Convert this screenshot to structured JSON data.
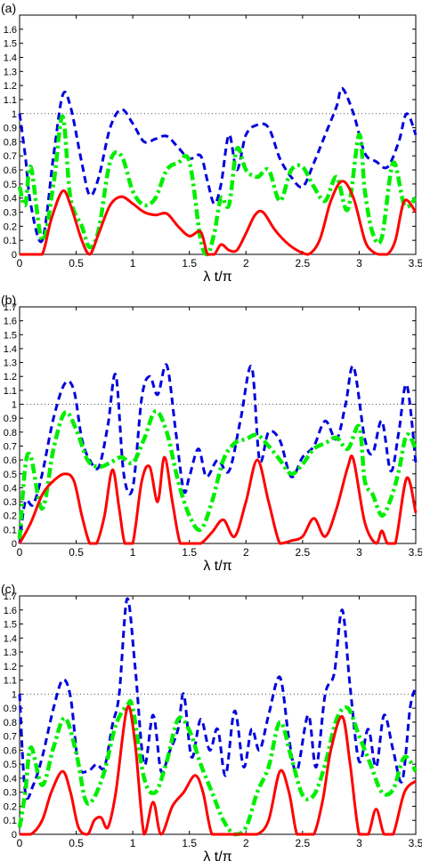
{
  "chart_data": [
    {
      "type": "line",
      "panel_label": "(a)",
      "xlabel": "λ t/π",
      "xlim": [
        0,
        3.5
      ],
      "ylim": [
        0,
        1.7
      ],
      "x_ticks": [
        0,
        0.5,
        1,
        1.5,
        2,
        2.5,
        3,
        3.5
      ],
      "x_tick_labels": [
        "0",
        "0.5",
        "1",
        "1.5",
        "2",
        "2.5",
        "3",
        "3.5"
      ],
      "y_ticks": [
        0,
        0.1,
        0.2,
        0.3,
        0.4,
        0.5,
        0.6,
        0.7,
        0.8,
        0.9,
        1,
        1.1,
        1.2,
        1.3,
        1.4,
        1.5,
        1.6,
        1.7
      ],
      "y_tick_labels": [
        "0",
        "0.1",
        "0.2",
        "0.3",
        "0.4",
        "0.5",
        "0.6",
        "0.7",
        "0.8",
        "0.9",
        "1",
        "1.1",
        "1.2",
        "1.3",
        "1.4",
        "1.5",
        "1.6",
        "1.7"
      ],
      "reference_line": 1,
      "series": [
        {
          "color": "#ff0000",
          "style": "solid",
          "x": [
            0,
            0.1,
            0.2,
            0.28,
            0.38,
            0.45,
            0.55,
            0.62,
            0.7,
            0.8,
            0.9,
            1.0,
            1.1,
            1.2,
            1.3,
            1.4,
            1.5,
            1.6,
            1.66,
            1.72,
            1.78,
            1.85,
            1.92,
            2.0,
            2.08,
            2.15,
            2.25,
            2.35,
            2.45,
            2.55,
            2.65,
            2.75,
            2.85,
            2.95,
            3.05,
            3.12,
            3.18,
            3.25,
            3.32,
            3.4,
            3.5
          ],
          "y": [
            0,
            0,
            0,
            0.25,
            0.45,
            0.35,
            0.1,
            0,
            0.15,
            0.35,
            0.41,
            0.36,
            0.3,
            0.28,
            0.29,
            0.2,
            0.13,
            0.16,
            0,
            0,
            0.07,
            0.03,
            0.03,
            0.15,
            0.28,
            0.3,
            0.18,
            0.09,
            0.03,
            0,
            0.1,
            0.38,
            0.52,
            0.4,
            0.1,
            0.02,
            0,
            0,
            0.1,
            0.38,
            0.3
          ]
        },
        {
          "color": "#0000dd",
          "style": "dashed",
          "x": [
            0,
            0.05,
            0.1,
            0.2,
            0.3,
            0.38,
            0.45,
            0.55,
            0.62,
            0.7,
            0.8,
            0.9,
            1.0,
            1.1,
            1.2,
            1.3,
            1.4,
            1.5,
            1.6,
            1.66,
            1.72,
            1.78,
            1.85,
            1.92,
            2.0,
            2.1,
            2.2,
            2.3,
            2.4,
            2.5,
            2.6,
            2.7,
            2.8,
            2.85,
            2.95,
            3.05,
            3.15,
            3.25,
            3.35,
            3.42,
            3.5
          ],
          "y": [
            1.0,
            0.7,
            0.35,
            0.1,
            0.7,
            1.13,
            1.05,
            0.65,
            0.42,
            0.55,
            0.9,
            1.03,
            0.93,
            0.8,
            0.82,
            0.84,
            0.76,
            0.68,
            0.7,
            0.52,
            0.36,
            0.5,
            0.85,
            0.6,
            0.85,
            0.92,
            0.9,
            0.68,
            0.55,
            0.48,
            0.65,
            0.85,
            1.05,
            1.18,
            1.0,
            0.72,
            0.66,
            0.62,
            0.8,
            1.0,
            0.85
          ]
        },
        {
          "color": "#00ee00",
          "style": "dashdot",
          "x": [
            0,
            0.05,
            0.1,
            0.2,
            0.3,
            0.38,
            0.45,
            0.55,
            0.62,
            0.7,
            0.8,
            0.9,
            1.0,
            1.1,
            1.2,
            1.3,
            1.4,
            1.5,
            1.6,
            1.66,
            1.72,
            1.78,
            1.85,
            1.92,
            2.0,
            2.1,
            2.2,
            2.3,
            2.4,
            2.5,
            2.6,
            2.7,
            2.8,
            2.9,
            3.0,
            3.05,
            3.12,
            3.2,
            3.3,
            3.4,
            3.5
          ],
          "y": [
            0.48,
            0.35,
            0.62,
            0.1,
            0.5,
            0.98,
            0.4,
            0.2,
            0.05,
            0.18,
            0.66,
            0.7,
            0.45,
            0.35,
            0.4,
            0.6,
            0.65,
            0.66,
            0.1,
            0.0,
            0.15,
            0.4,
            0.35,
            0.75,
            0.6,
            0.55,
            0.6,
            0.38,
            0.6,
            0.62,
            0.48,
            0.38,
            0.55,
            0.32,
            0.85,
            0.45,
            0.15,
            0.12,
            0.65,
            0.35,
            0.4
          ]
        }
      ]
    },
    {
      "type": "line",
      "panel_label": "(b)",
      "xlabel": "λ t/π",
      "xlim": [
        0,
        3.5
      ],
      "ylim": [
        0,
        1.7
      ],
      "x_ticks": [
        0,
        0.5,
        1,
        1.5,
        2,
        2.5,
        3,
        3.5
      ],
      "x_tick_labels": [
        "0",
        "0.5",
        "1",
        "1.5",
        "2",
        "2.5",
        "3",
        "3.5"
      ],
      "y_ticks": [
        0,
        0.1,
        0.2,
        0.3,
        0.4,
        0.5,
        0.6,
        0.7,
        0.8,
        0.9,
        1,
        1.1,
        1.2,
        1.3,
        1.4,
        1.5,
        1.6,
        1.7
      ],
      "y_tick_labels": [
        "0",
        "0.1",
        "0.2",
        "0.3",
        "0.4",
        "0.5",
        "0.6",
        "0.7",
        "0.8",
        "0.9",
        "1",
        "1.1",
        "1.2",
        "1.3",
        "1.4",
        "1.5",
        "1.6",
        "1.7"
      ],
      "reference_line": 1,
      "series": [
        {
          "color": "#ff0000",
          "style": "solid",
          "x": [
            0,
            0.1,
            0.2,
            0.3,
            0.4,
            0.48,
            0.55,
            0.62,
            0.68,
            0.75,
            0.82,
            0.88,
            0.93,
            1.0,
            1.08,
            1.15,
            1.22,
            1.28,
            1.35,
            1.42,
            1.5,
            1.6,
            1.7,
            1.8,
            1.9,
            2.0,
            2.1,
            2.2,
            2.3,
            2.4,
            2.5,
            2.6,
            2.7,
            2.8,
            2.9,
            2.95,
            3.05,
            3.15,
            3.2,
            3.25,
            3.32,
            3.42,
            3.5
          ],
          "y": [
            0,
            0.15,
            0.35,
            0.45,
            0.5,
            0.45,
            0.2,
            0,
            0,
            0.2,
            0.53,
            0.25,
            0,
            0,
            0.45,
            0.55,
            0.3,
            0.62,
            0.3,
            0,
            0,
            0,
            0.08,
            0.17,
            0.05,
            0.3,
            0.6,
            0.3,
            0,
            0.02,
            0.05,
            0.18,
            0.05,
            0.25,
            0.55,
            0.6,
            0.15,
            0,
            0.09,
            0,
            0,
            0.47,
            0.22
          ]
        },
        {
          "color": "#0000dd",
          "style": "dashed",
          "x": [
            0,
            0.05,
            0.12,
            0.2,
            0.3,
            0.4,
            0.48,
            0.55,
            0.62,
            0.7,
            0.78,
            0.85,
            0.92,
            1.0,
            1.08,
            1.15,
            1.22,
            1.3,
            1.38,
            1.45,
            1.5,
            1.58,
            1.65,
            1.75,
            1.85,
            1.95,
            2.05,
            2.12,
            2.2,
            2.3,
            2.4,
            2.5,
            2.6,
            2.7,
            2.8,
            2.88,
            2.95,
            3.05,
            3.12,
            3.2,
            3.28,
            3.35,
            3.42,
            3.5
          ],
          "y": [
            0,
            0.3,
            0.28,
            0.5,
            0.9,
            1.15,
            1.1,
            0.75,
            0.6,
            0.55,
            0.85,
            1.21,
            0.5,
            0.4,
            1.05,
            1.2,
            1.07,
            1.28,
            0.8,
            0.38,
            0.48,
            0.68,
            0.48,
            0.6,
            0.52,
            0.88,
            1.27,
            0.6,
            0.8,
            0.74,
            0.48,
            0.62,
            0.7,
            0.88,
            0.75,
            1.0,
            1.27,
            0.75,
            0.65,
            0.88,
            0.52,
            0.8,
            1.14,
            0.58
          ]
        },
        {
          "color": "#00ee00",
          "style": "dashdot",
          "x": [
            0,
            0.05,
            0.1,
            0.2,
            0.3,
            0.4,
            0.5,
            0.6,
            0.7,
            0.8,
            0.9,
            1.0,
            1.1,
            1.2,
            1.3,
            1.4,
            1.5,
            1.6,
            1.7,
            1.8,
            1.9,
            2.0,
            2.1,
            2.2,
            2.3,
            2.4,
            2.5,
            2.6,
            2.7,
            2.8,
            2.9,
            3.0,
            3.05,
            3.12,
            3.2,
            3.28,
            3.35,
            3.42,
            3.5
          ],
          "y": [
            0.03,
            0.55,
            0.62,
            0.25,
            0.68,
            0.94,
            0.82,
            0.6,
            0.55,
            0.58,
            0.62,
            0.58,
            0.75,
            0.95,
            0.8,
            0.45,
            0.2,
            0.1,
            0.3,
            0.6,
            0.72,
            0.75,
            0.78,
            0.7,
            0.6,
            0.5,
            0.57,
            0.68,
            0.72,
            0.76,
            0.68,
            0.84,
            0.45,
            0.35,
            0.2,
            0.32,
            0.52,
            0.78,
            0.68
          ]
        }
      ]
    },
    {
      "type": "line",
      "panel_label": "(c)",
      "xlabel": "λ t/π",
      "xlim": [
        0,
        3.5
      ],
      "ylim": [
        0,
        1.7
      ],
      "x_ticks": [
        0,
        0.5,
        1,
        1.5,
        2,
        2.5,
        3,
        3.5
      ],
      "x_tick_labels": [
        "0",
        "0.5",
        "1",
        "1.5",
        "2",
        "2.5",
        "3",
        "3.5"
      ],
      "y_ticks": [
        0,
        0.1,
        0.2,
        0.3,
        0.4,
        0.5,
        0.6,
        0.7,
        0.8,
        0.9,
        1,
        1.1,
        1.2,
        1.3,
        1.4,
        1.5,
        1.6,
        1.7
      ],
      "y_tick_labels": [
        "0",
        "0.1",
        "0.2",
        "0.3",
        "0.4",
        "0.5",
        "0.6",
        "0.7",
        "0.8",
        "0.9",
        "1",
        "1.1",
        "1.2",
        "1.3",
        "1.4",
        "1.5",
        "1.6",
        "1.7"
      ],
      "reference_line": 1,
      "series": [
        {
          "color": "#ff0000",
          "style": "solid",
          "x": [
            0,
            0.1,
            0.2,
            0.28,
            0.38,
            0.45,
            0.52,
            0.6,
            0.66,
            0.72,
            0.78,
            0.85,
            0.95,
            1.02,
            1.1,
            1.18,
            1.25,
            1.35,
            1.45,
            1.55,
            1.62,
            1.7,
            1.8,
            1.9,
            2.0,
            2.1,
            2.2,
            2.3,
            2.38,
            2.45,
            2.52,
            2.6,
            2.68,
            2.75,
            2.85,
            2.92,
            3.0,
            3.08,
            3.15,
            3.22,
            3.3,
            3.4,
            3.5
          ],
          "y": [
            0,
            0,
            0.1,
            0.3,
            0.45,
            0.3,
            0.05,
            0,
            0.1,
            0.12,
            0.05,
            0.3,
            0.9,
            0.65,
            0,
            0.23,
            0,
            0.2,
            0.3,
            0.42,
            0.3,
            0,
            0,
            0,
            0,
            0,
            0.1,
            0.45,
            0.3,
            0,
            0,
            0,
            0.25,
            0.6,
            0.84,
            0.5,
            0,
            0,
            0.18,
            0,
            0,
            0.3,
            0.38
          ]
        },
        {
          "color": "#0000dd",
          "style": "dashed",
          "x": [
            0,
            0.05,
            0.12,
            0.2,
            0.3,
            0.38,
            0.45,
            0.52,
            0.6,
            0.68,
            0.75,
            0.82,
            0.88,
            0.95,
            1.02,
            1.1,
            1.18,
            1.25,
            1.32,
            1.4,
            1.45,
            1.52,
            1.6,
            1.68,
            1.75,
            1.82,
            1.9,
            1.98,
            2.05,
            2.12,
            2.2,
            2.3,
            2.38,
            2.45,
            2.55,
            2.62,
            2.7,
            2.78,
            2.85,
            2.92,
            3.0,
            3.08,
            3.15,
            3.22,
            3.3,
            3.38,
            3.45,
            3.5
          ],
          "y": [
            1.0,
            0.3,
            0.35,
            0.55,
            0.9,
            1.1,
            0.98,
            0.5,
            0.45,
            0.5,
            0.48,
            0.78,
            1.0,
            1.68,
            1.2,
            0.5,
            0.85,
            0.45,
            0.58,
            0.75,
            1.0,
            0.55,
            0.82,
            0.6,
            0.75,
            0.42,
            0.88,
            0.48,
            0.75,
            0.6,
            0.85,
            1.12,
            0.68,
            0.45,
            0.85,
            0.48,
            1.0,
            1.15,
            1.6,
            1.05,
            0.52,
            0.75,
            0.48,
            0.85,
            0.6,
            0.38,
            0.9,
            1.05
          ]
        },
        {
          "color": "#00ee00",
          "style": "dashdot",
          "x": [
            0,
            0.05,
            0.1,
            0.2,
            0.3,
            0.4,
            0.5,
            0.58,
            0.65,
            0.75,
            0.85,
            0.95,
            1.0,
            1.1,
            1.2,
            1.3,
            1.4,
            1.5,
            1.6,
            1.7,
            1.8,
            1.9,
            2.0,
            2.1,
            2.2,
            2.3,
            2.4,
            2.5,
            2.6,
            2.7,
            2.8,
            2.9,
            3.0,
            3.1,
            3.2,
            3.3,
            3.4,
            3.5
          ],
          "y": [
            0.05,
            0.3,
            0.62,
            0.35,
            0.62,
            0.83,
            0.58,
            0.25,
            0.25,
            0.45,
            0.78,
            0.92,
            0.9,
            0.4,
            0.3,
            0.52,
            0.82,
            0.74,
            0.5,
            0.3,
            0.1,
            0,
            0.05,
            0.3,
            0.48,
            0.8,
            0.55,
            0.28,
            0.28,
            0.5,
            0.82,
            0.9,
            0.7,
            0.5,
            0.3,
            0.32,
            0.55,
            0.45
          ]
        }
      ]
    }
  ]
}
